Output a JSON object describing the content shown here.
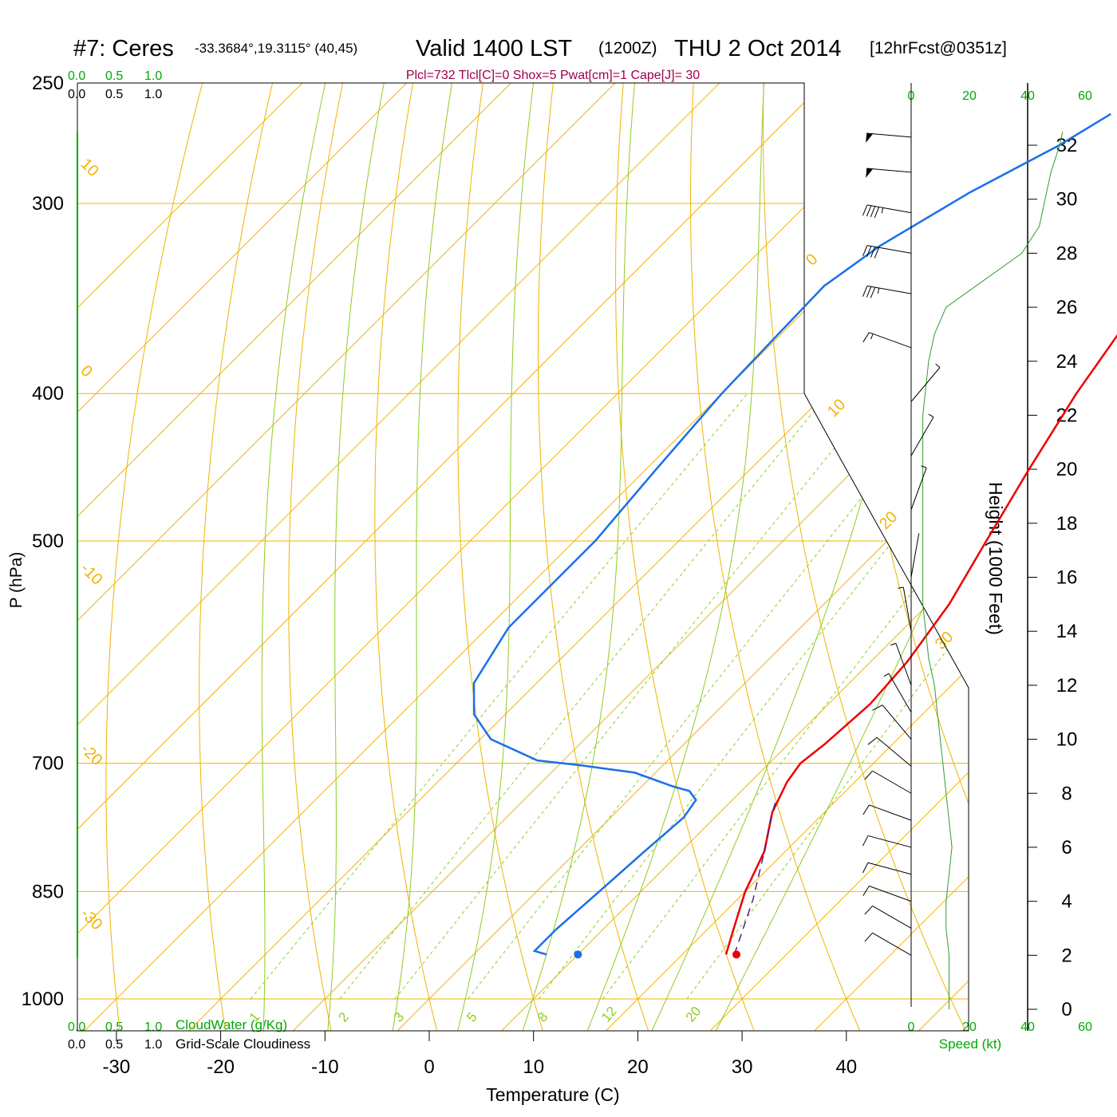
{
  "title": {
    "station": "#7: Ceres",
    "coords": "-33.3684°,19.3115° (40,45)",
    "valid": "Valid 1400 LST",
    "zulu": "(1200Z)",
    "date": "THU 2 Oct 2014",
    "forecast": "[12hrFcst@0351z]"
  },
  "indices": "Plcl=732 Tlcl[C]=0 Shox=5 Pwat[cm]=1 Cape[J]= 30",
  "scales": {
    "cloudwater_ticks": [
      "0.0",
      "0.5",
      "1.0"
    ],
    "cloudiness_ticks": [
      "0.0",
      "0.5",
      "1.0"
    ],
    "cloudwater_label": "CloudWater (g/Kg)",
    "cloudiness_label": "Grid-Scale Cloudiness",
    "speed_ticks": [
      "0",
      "20",
      "40",
      "60"
    ],
    "speed_label": "Speed (kt)"
  },
  "colors": {
    "temperature": "#ee0000",
    "dewpoint": "#1a6fe8",
    "parcel": "#551a8b",
    "isotherm": "#f0b400",
    "dry_adiabat": "#f0b400",
    "moist_adiabat": "#8fcc1f",
    "mixing_ratio": "#8fcc1f",
    "cloud_axis": "#00aa00",
    "index_text": "#a0004a"
  },
  "chart_data": {
    "type": "line",
    "xlabel": "Temperature (C)",
    "ylabel": "P (hPa)",
    "y2label": "Height (1000 Feet)",
    "xlim": [
      -34,
      46
    ],
    "ylim": [
      1000,
      250
    ],
    "x_ticks": [
      -30,
      -20,
      -10,
      0,
      10,
      20,
      30,
      40
    ],
    "p_ticks": [
      250,
      300,
      400,
      500,
      700,
      850,
      1000
    ],
    "height_ticks": [
      0,
      2,
      4,
      6,
      8,
      10,
      12,
      14,
      16,
      18,
      20,
      22,
      24,
      26,
      28,
      30,
      32
    ],
    "isotherm_labels": [
      {
        "value": "10",
        "p": 283,
        "t": -34
      },
      {
        "value": "0",
        "p": 387,
        "t": -34
      },
      {
        "value": "-10",
        "p": 522,
        "t": -34
      },
      {
        "value": "-20",
        "p": 686,
        "t": -34
      },
      {
        "value": "-30",
        "p": 880,
        "t": -34
      },
      {
        "value": "0",
        "p": 330,
        "t": 36
      },
      {
        "value": "10",
        "p": 415,
        "t": 40
      },
      {
        "value": "20",
        "p": 492,
        "t": 44
      },
      {
        "value": "30",
        "p": 590,
        "t": 50
      }
    ],
    "mixing_ratio_labels": [
      "1",
      "2",
      "3",
      "5",
      "8",
      "12",
      "20"
    ],
    "series": [
      {
        "name": "Temperature",
        "points": [
          [
            24.2,
            935
          ],
          [
            22.5,
            900
          ],
          [
            20,
            850
          ],
          [
            18,
            800
          ],
          [
            15,
            754
          ],
          [
            13.5,
            720
          ],
          [
            13,
            700
          ],
          [
            13.5,
            680
          ],
          [
            14,
            640
          ],
          [
            13.5,
            600
          ],
          [
            12,
            550
          ],
          [
            9.5,
            500
          ],
          [
            6.8,
            450
          ],
          [
            4,
            400
          ],
          [
            1.5,
            350
          ],
          [
            -0.5,
            310
          ],
          [
            -1.8,
            280
          ],
          [
            -2.6,
            262
          ]
        ]
      },
      {
        "name": "Dewpoint",
        "points": [
          [
            7,
            935
          ],
          [
            5.5,
            930
          ],
          [
            5.5,
            900
          ],
          [
            6,
            850
          ],
          [
            6.5,
            800
          ],
          [
            7,
            760
          ],
          [
            6.5,
            740
          ],
          [
            5,
            730
          ],
          [
            3,
            725
          ],
          [
            -2,
            710
          ],
          [
            -8,
            702
          ],
          [
            -12.5,
            697
          ],
          [
            -19,
            675
          ],
          [
            -23,
            650
          ],
          [
            -26,
            620
          ],
          [
            -28,
            570
          ],
          [
            -28,
            500
          ],
          [
            -29,
            450
          ],
          [
            -30,
            400
          ],
          [
            -30.5,
            340
          ],
          [
            -29,
            320
          ],
          [
            -25.5,
            295
          ],
          [
            -21.5,
            275
          ],
          [
            -19.5,
            262
          ]
        ]
      },
      {
        "name": "Parcel",
        "dashed": true,
        "points": [
          [
            25,
            935
          ],
          [
            21.5,
            860
          ],
          [
            18,
            800
          ],
          [
            15,
            754
          ],
          [
            14.2,
            740
          ]
        ]
      }
    ],
    "surface_points": [
      {
        "name": "Surface temperature",
        "t": 25.2,
        "p": 935
      },
      {
        "name": "Surface dewpoint",
        "t": 10,
        "p": 935
      }
    ],
    "wind_speed_kt": [
      [
        0,
        13
      ],
      [
        1,
        13
      ],
      [
        2,
        13
      ],
      [
        3,
        12
      ],
      [
        4,
        12
      ],
      [
        5,
        13
      ],
      [
        6,
        14
      ],
      [
        7,
        13
      ],
      [
        8,
        12
      ],
      [
        9,
        11
      ],
      [
        10,
        10
      ],
      [
        11,
        9
      ],
      [
        12,
        8
      ],
      [
        13,
        6
      ],
      [
        14,
        5
      ],
      [
        15,
        4
      ],
      [
        16,
        4
      ],
      [
        17,
        4
      ],
      [
        18,
        4
      ],
      [
        19,
        4
      ],
      [
        20,
        4
      ],
      [
        21,
        4
      ],
      [
        22,
        4
      ],
      [
        23,
        5
      ],
      [
        24,
        6
      ],
      [
        25,
        8
      ],
      [
        26,
        12
      ],
      [
        27,
        25
      ],
      [
        28,
        38
      ],
      [
        29,
        44
      ],
      [
        30,
        46
      ],
      [
        31,
        48
      ],
      [
        32,
        51
      ],
      [
        32.5,
        52
      ]
    ],
    "wind_barbs": [
      {
        "h": 2,
        "speed": 13,
        "dir": 300
      },
      {
        "h": 3,
        "speed": 12,
        "dir": 300
      },
      {
        "h": 4,
        "speed": 12,
        "dir": 290
      },
      {
        "h": 5,
        "speed": 13,
        "dir": 285
      },
      {
        "h": 6,
        "speed": 14,
        "dir": 285
      },
      {
        "h": 7,
        "speed": 13,
        "dir": 290
      },
      {
        "h": 8,
        "speed": 12,
        "dir": 300
      },
      {
        "h": 9,
        "speed": 11,
        "dir": 310
      },
      {
        "h": 10,
        "speed": 10,
        "dir": 320
      },
      {
        "h": 11,
        "speed": 9,
        "dir": 330
      },
      {
        "h": 12,
        "speed": 8,
        "dir": 340
      },
      {
        "h": 14,
        "speed": 5,
        "dir": 350
      },
      {
        "h": 16,
        "speed": 4,
        "dir": 10
      },
      {
        "h": 18.5,
        "speed": 5,
        "dir": 20
      },
      {
        "h": 20.5,
        "speed": 6,
        "dir": 30
      },
      {
        "h": 22.5,
        "speed": 8,
        "dir": 40
      },
      {
        "h": 24.5,
        "speed": 15,
        "dir": 290
      },
      {
        "h": 26.5,
        "speed": 35,
        "dir": 280
      },
      {
        "h": 28,
        "speed": 40,
        "dir": 280
      },
      {
        "h": 29.5,
        "speed": 45,
        "dir": 280
      },
      {
        "h": 31,
        "speed": 50,
        "dir": 275
      },
      {
        "h": 32.3,
        "speed": 50,
        "dir": 275
      }
    ]
  }
}
